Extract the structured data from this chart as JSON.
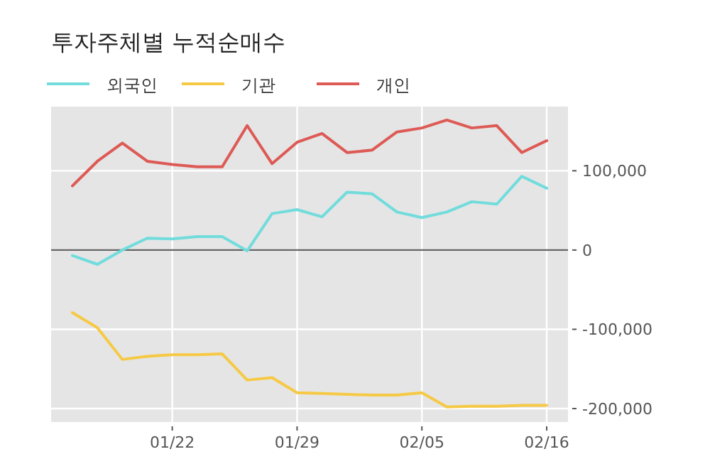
{
  "chart_data": {
    "type": "line",
    "title": "투자주체별 누적순매수",
    "categories": [
      null,
      null,
      null,
      null,
      "01/22",
      null,
      null,
      null,
      null,
      "01/29",
      null,
      null,
      null,
      null,
      "02/05",
      null,
      null,
      null,
      null,
      "02/16"
    ],
    "series": [
      {
        "name": "외국인",
        "color": "#72dcdc",
        "values": [
          -7000,
          -18000,
          0,
          15000,
          14000,
          17000,
          17000,
          -1000,
          46000,
          51000,
          42000,
          73000,
          71000,
          48000,
          41000,
          48000,
          61000,
          58000,
          93000,
          78000
        ]
      },
      {
        "name": "기관",
        "color": "#f6c945",
        "values": [
          -79000,
          -98000,
          -138000,
          -134000,
          -132000,
          -132000,
          -131000,
          -164000,
          -161000,
          -180000,
          -181000,
          -182000,
          -183000,
          -183000,
          -180000,
          -198000,
          -197000,
          -197000,
          -196000,
          -196000
        ]
      },
      {
        "name": "개인",
        "color": "#dd5a55",
        "values": [
          81000,
          112000,
          135000,
          112000,
          108000,
          105000,
          105000,
          157000,
          109000,
          136000,
          147000,
          123000,
          126000,
          149000,
          154000,
          164000,
          154000,
          157000,
          123000,
          138000
        ]
      }
    ],
    "ylim": [
      -217000,
      181000
    ],
    "yticks": [
      {
        "value": -200000,
        "label": "-200,000"
      },
      {
        "value": -100000,
        "label": "-100,000"
      },
      0,
      {
        "value": 100000,
        "label": "100,000"
      }
    ],
    "ref_lines": [
      {
        "axis": "y",
        "value": 0,
        "color": "#666666"
      }
    ],
    "grid": true,
    "legend": "top left"
  }
}
